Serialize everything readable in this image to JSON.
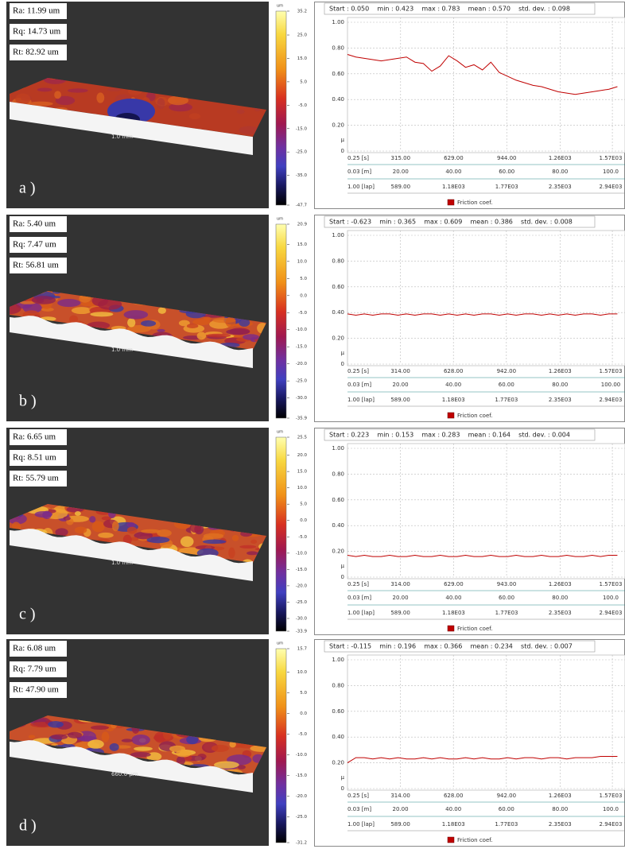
{
  "panels": [
    {
      "label": "a )",
      "roughness": [
        "Ra: 11.99 um",
        "Rq: 14.73 um",
        "Rt: 82.92 um"
      ],
      "scale_label": "1.0 mm",
      "colorbar": {
        "unit": "um",
        "clim": [
          -47.7,
          35.2
        ],
        "ticks": [
          35.2,
          {
            "value": 25,
            "label": "25.0"
          },
          {
            "value": 15,
            "label": "15.0"
          },
          {
            "value": 5,
            "label": "5.0"
          },
          {
            "value": -5,
            "label": "-5.0"
          },
          {
            "value": -15,
            "label": "-15.0"
          },
          {
            "value": -25,
            "label": "-25.0"
          },
          {
            "value": -35,
            "label": "-35.0"
          },
          -47.7
        ]
      }
    },
    {
      "label": "b )",
      "roughness": [
        "Ra: 5.40 um",
        "Rq: 7.47 um",
        "Rt: 56.81 um"
      ],
      "scale_label": "1.0 mm",
      "colorbar": {
        "unit": "um",
        "clim": [
          -35.9,
          20.9
        ],
        "ticks": [
          20.9,
          {
            "value": 15,
            "label": "15.0"
          },
          {
            "value": 10,
            "label": "10.0"
          },
          {
            "value": 5,
            "label": "5.0"
          },
          {
            "value": 0,
            "label": "0.0"
          },
          {
            "value": -5,
            "label": "-5.0"
          },
          {
            "value": -10,
            "label": "-10.0"
          },
          {
            "value": -15,
            "label": "-15.0"
          },
          {
            "value": -20,
            "label": "-20.0"
          },
          {
            "value": -25,
            "label": "-25.0"
          },
          {
            "value": -30,
            "label": "-30.0"
          },
          -35.9
        ]
      }
    },
    {
      "label": "c )",
      "roughness": [
        "Ra: 6.65 um",
        "Rq: 8.51 um",
        "Rt: 55.79 um"
      ],
      "scale_label": "1.0 mm",
      "colorbar": {
        "unit": "um",
        "clim": [
          -33.9,
          25.5
        ],
        "ticks": [
          25.5,
          {
            "value": 20,
            "label": "20.0"
          },
          {
            "value": 15,
            "label": "15.0"
          },
          {
            "value": 10,
            "label": "10.0"
          },
          {
            "value": 5,
            "label": "5.0"
          },
          {
            "value": 0,
            "label": "0.0"
          },
          {
            "value": -5,
            "label": "-5.0"
          },
          {
            "value": -10,
            "label": "-10.0"
          },
          {
            "value": -15,
            "label": "-15.0"
          },
          {
            "value": -20,
            "label": "-20.0"
          },
          {
            "value": -25,
            "label": "-25.0"
          },
          {
            "value": -30,
            "label": "-30.0"
          },
          -33.9
        ]
      }
    },
    {
      "label": "d )",
      "roughness": [
        "Ra: 6.08 um",
        "Rq: 7.79 um",
        "Rt: 47.90 um"
      ],
      "scale_label": "660.0 µm",
      "colorbar": {
        "unit": "um",
        "clim": [
          -31.2,
          15.7
        ],
        "ticks": [
          15.7,
          {
            "value": 10,
            "label": "10.0"
          },
          {
            "value": 5,
            "label": "5.0"
          },
          {
            "value": 0,
            "label": "0.0"
          },
          {
            "value": -5,
            "label": "-5.0"
          },
          {
            "value": -10,
            "label": "-10.0"
          },
          {
            "value": -15,
            "label": "-15.0"
          },
          {
            "value": -20,
            "label": "-20.0"
          },
          {
            "value": -25,
            "label": "-25.0"
          },
          -31.2
        ]
      }
    }
  ],
  "chart_data": [
    {
      "type": "line",
      "header": "Start : 0.050    min : 0.423    max : 0.783    mean : 0.570    std. dev. : 0.098",
      "x": [
        0.25,
        50,
        100,
        150,
        200,
        250,
        300,
        350,
        400,
        450,
        500,
        550,
        600,
        650,
        700,
        750,
        800,
        850,
        900,
        950,
        1000,
        1050,
        1100,
        1150,
        1200,
        1250,
        1300,
        1350,
        1400,
        1450,
        1500,
        1550,
        1600
      ],
      "series": [
        {
          "name": "Friction coef.",
          "color": "#c00000",
          "values": [
            0.75,
            0.73,
            0.72,
            0.71,
            0.7,
            0.71,
            0.72,
            0.73,
            0.69,
            0.68,
            0.62,
            0.66,
            0.74,
            0.7,
            0.65,
            0.67,
            0.63,
            0.69,
            0.61,
            0.58,
            0.55,
            0.53,
            0.51,
            0.5,
            0.48,
            0.46,
            0.45,
            0.44,
            0.45,
            0.46,
            0.47,
            0.48,
            0.5
          ]
        }
      ],
      "xlim": [
        0.25,
        1645
      ],
      "xticks": [
        {
          "value": 0.25,
          "label": "0.25 [s]"
        },
        {
          "value": 315,
          "label": "315.00"
        },
        {
          "value": 629,
          "label": "629.00"
        },
        {
          "value": 944,
          "label": "944.00"
        },
        {
          "value": 1260,
          "label": "1.26E03"
        },
        {
          "value": 1570,
          "label": "1.57E03"
        }
      ],
      "distance_labels": [
        "0.03 [m]",
        "20.00",
        "40.00",
        "60.00",
        "80.00",
        "100.0"
      ],
      "lap_labels": [
        "1.00 [lap]",
        "589.00",
        "1.18E03",
        "1.77E03",
        "2.35E03",
        "2.94E03"
      ],
      "ylim": [
        0,
        1
      ],
      "yticks": [
        {
          "value": 1,
          "label": "1.00"
        },
        {
          "value": 0.8,
          "label": "0.80"
        },
        {
          "value": 0.6,
          "label": "0.60"
        },
        {
          "value": 0.4,
          "label": "0.40"
        },
        {
          "value": 0.2,
          "label": "0.20"
        },
        0
      ],
      "y_label": "µ",
      "grid": true
    },
    {
      "type": "line",
      "header": "Start : -0.623    min : 0.365    max : 0.609    mean : 0.386    std. dev. : 0.008",
      "x": [
        0.25,
        50,
        100,
        150,
        200,
        250,
        300,
        350,
        400,
        450,
        500,
        550,
        600,
        650,
        700,
        750,
        800,
        850,
        900,
        950,
        1000,
        1050,
        1100,
        1150,
        1200,
        1250,
        1300,
        1350,
        1400,
        1450,
        1500,
        1550,
        1600
      ],
      "series": [
        {
          "name": "Friction coef.",
          "color": "#c00000",
          "values": [
            0.39,
            0.38,
            0.39,
            0.38,
            0.39,
            0.39,
            0.38,
            0.39,
            0.38,
            0.39,
            0.39,
            0.38,
            0.39,
            0.38,
            0.39,
            0.38,
            0.39,
            0.39,
            0.38,
            0.39,
            0.38,
            0.39,
            0.39,
            0.38,
            0.39,
            0.38,
            0.39,
            0.38,
            0.39,
            0.39,
            0.38,
            0.39,
            0.39
          ]
        }
      ],
      "xlim": [
        0.25,
        1645
      ],
      "xticks": [
        {
          "value": 0.25,
          "label": "0.25 [s]"
        },
        {
          "value": 314,
          "label": "314.00"
        },
        {
          "value": 628,
          "label": "628.00"
        },
        {
          "value": 942,
          "label": "942.00"
        },
        {
          "value": 1260,
          "label": "1.26E03"
        },
        {
          "value": 1570,
          "label": "1.57E03"
        }
      ],
      "distance_labels": [
        "0.03 [m]",
        "20.00",
        "40.00",
        "60.00",
        "80.00",
        "100.00"
      ],
      "lap_labels": [
        "1.00 [lap]",
        "589.00",
        "1.18E03",
        "1.77E03",
        "2.35E03",
        "2.94E03"
      ],
      "ylim": [
        0,
        1
      ],
      "yticks": [
        {
          "value": 1,
          "label": "1.00"
        },
        {
          "value": 0.8,
          "label": "0.80"
        },
        {
          "value": 0.6,
          "label": "0.60"
        },
        {
          "value": 0.4,
          "label": "0.40"
        },
        {
          "value": 0.2,
          "label": "0.20"
        },
        0
      ],
      "y_label": "µ",
      "grid": true
    },
    {
      "type": "line",
      "header": "Start : 0.223    min : 0.153    max : 0.283    mean : 0.164    std. dev. : 0.004",
      "x": [
        0.25,
        50,
        100,
        150,
        200,
        250,
        300,
        350,
        400,
        450,
        500,
        550,
        600,
        650,
        700,
        750,
        800,
        850,
        900,
        950,
        1000,
        1050,
        1100,
        1150,
        1200,
        1250,
        1300,
        1350,
        1400,
        1450,
        1500,
        1550,
        1600
      ],
      "series": [
        {
          "name": "Friction coef.",
          "color": "#c00000",
          "values": [
            0.17,
            0.16,
            0.17,
            0.16,
            0.16,
            0.17,
            0.16,
            0.16,
            0.17,
            0.16,
            0.16,
            0.17,
            0.16,
            0.16,
            0.17,
            0.16,
            0.16,
            0.17,
            0.16,
            0.16,
            0.17,
            0.16,
            0.16,
            0.17,
            0.16,
            0.16,
            0.17,
            0.16,
            0.16,
            0.17,
            0.16,
            0.17,
            0.17
          ]
        }
      ],
      "xlim": [
        0.25,
        1645
      ],
      "xticks": [
        {
          "value": 0.25,
          "label": "0.25 [s]"
        },
        {
          "value": 314,
          "label": "314.00"
        },
        {
          "value": 629,
          "label": "629.00"
        },
        {
          "value": 943,
          "label": "943.00"
        },
        {
          "value": 1260,
          "label": "1.26E03"
        },
        {
          "value": 1570,
          "label": "1.57E03"
        }
      ],
      "distance_labels": [
        "0.03 [m]",
        "20.00",
        "40.00",
        "60.00",
        "80.00",
        "100.0"
      ],
      "lap_labels": [
        "1.00 [lap]",
        "589.00",
        "1.18E03",
        "1.77E03",
        "2.35E03",
        "2.94E03"
      ],
      "ylim": [
        0,
        1
      ],
      "yticks": [
        {
          "value": 1,
          "label": "1.00"
        },
        {
          "value": 0.8,
          "label": "0.80"
        },
        {
          "value": 0.6,
          "label": "0.60"
        },
        {
          "value": 0.4,
          "label": "0.40"
        },
        {
          "value": 0.2,
          "label": "0.20"
        },
        0
      ],
      "y_label": "µ",
      "grid": true
    },
    {
      "type": "line",
      "header": "Start : -0.115    min : 0.196    max : 0.366    mean : 0.234    std. dev. : 0.007",
      "x": [
        0.25,
        50,
        100,
        150,
        200,
        250,
        300,
        350,
        400,
        450,
        500,
        550,
        600,
        650,
        700,
        750,
        800,
        850,
        900,
        950,
        1000,
        1050,
        1100,
        1150,
        1200,
        1250,
        1300,
        1350,
        1400,
        1450,
        1500,
        1550,
        1600
      ],
      "series": [
        {
          "name": "Friction coef.",
          "color": "#c00000",
          "values": [
            0.2,
            0.24,
            0.24,
            0.23,
            0.24,
            0.23,
            0.24,
            0.23,
            0.23,
            0.24,
            0.23,
            0.24,
            0.23,
            0.23,
            0.24,
            0.23,
            0.24,
            0.23,
            0.23,
            0.24,
            0.23,
            0.24,
            0.24,
            0.23,
            0.24,
            0.24,
            0.23,
            0.24,
            0.24,
            0.24,
            0.25,
            0.25,
            0.25
          ]
        }
      ],
      "xlim": [
        0.25,
        1645
      ],
      "xticks": [
        {
          "value": 0.25,
          "label": "0.25 [s]"
        },
        {
          "value": 314,
          "label": "314.00"
        },
        {
          "value": 628,
          "label": "628.00"
        },
        {
          "value": 942,
          "label": "942.00"
        },
        {
          "value": 1260,
          "label": "1.26E03"
        },
        {
          "value": 1570,
          "label": "1.57E03"
        }
      ],
      "distance_labels": [
        "0.03 [m]",
        "20.00",
        "40.00",
        "60.00",
        "80.00",
        "100.0"
      ],
      "lap_labels": [
        "1.00 [lap]",
        "589.00",
        "1.18E03",
        "1.77E03",
        "2.35E03",
        "2.94E03"
      ],
      "ylim": [
        0,
        1
      ],
      "yticks": [
        {
          "value": 1,
          "label": "1.00"
        },
        {
          "value": 0.8,
          "label": "0.80"
        },
        {
          "value": 0.6,
          "label": "0.60"
        },
        {
          "value": 0.4,
          "label": "0.40"
        },
        {
          "value": 0.2,
          "label": "0.20"
        },
        0
      ],
      "y_label": "µ",
      "grid": true
    }
  ]
}
